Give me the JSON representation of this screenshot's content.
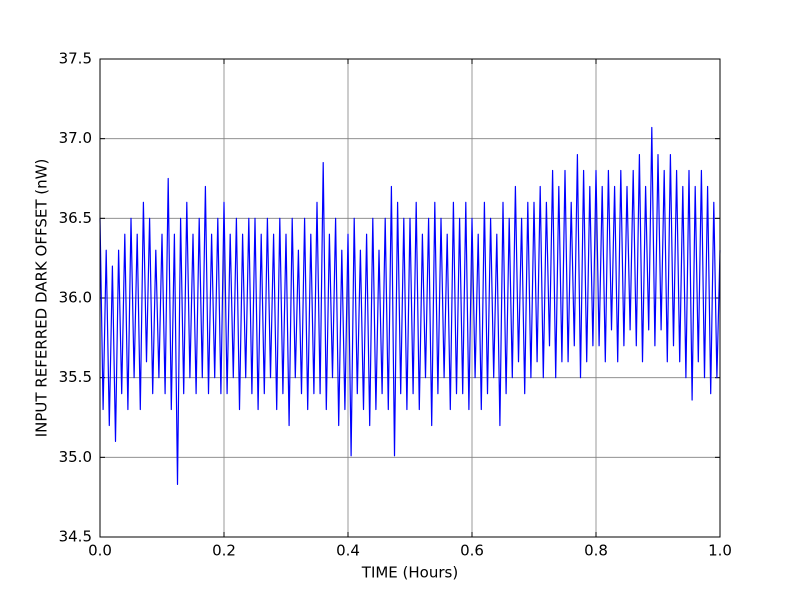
{
  "chart_data": {
    "type": "line",
    "xlabel": "TIME (Hours)",
    "ylabel": "INPUT REFERRED DARK OFFSET (nW)",
    "xlim": [
      0,
      1
    ],
    "ylim": [
      34.5,
      37.5
    ],
    "xticks": [
      {
        "value": 0,
        "label": "0.0"
      },
      0.2,
      0.4,
      0.6,
      0.8,
      {
        "value": 1,
        "label": "1.0"
      }
    ],
    "yticks": [
      34.5,
      {
        "value": 35,
        "label": "35.0"
      },
      35.5,
      {
        "value": 36,
        "label": "36.0"
      },
      36.5,
      {
        "value": 37,
        "label": "37.0"
      },
      37.5
    ],
    "grid": true,
    "series": [
      {
        "color": "#0000ff",
        "x": [
          0,
          0.005,
          0.01,
          0.015,
          0.02,
          0.025,
          0.03,
          0.035,
          0.04,
          0.045,
          0.05,
          0.055,
          0.06,
          0.065,
          0.07,
          0.075,
          0.08,
          0.085,
          0.09,
          0.095,
          0.1,
          0.105,
          0.11,
          0.115,
          0.12,
          0.125,
          0.13,
          0.135,
          0.14,
          0.145,
          0.15,
          0.155,
          0.16,
          0.165,
          0.17,
          0.175,
          0.18,
          0.185,
          0.19,
          0.195,
          0.2,
          0.205,
          0.21,
          0.215,
          0.22,
          0.225,
          0.23,
          0.235,
          0.24,
          0.245,
          0.25,
          0.255,
          0.26,
          0.265,
          0.27,
          0.275,
          0.28,
          0.285,
          0.29,
          0.295,
          0.3,
          0.305,
          0.31,
          0.315,
          0.32,
          0.325,
          0.33,
          0.335,
          0.34,
          0.345,
          0.35,
          0.355,
          0.36,
          0.365,
          0.37,
          0.375,
          0.38,
          0.385,
          0.39,
          0.395,
          0.4,
          0.405,
          0.41,
          0.415,
          0.42,
          0.425,
          0.43,
          0.435,
          0.44,
          0.445,
          0.45,
          0.455,
          0.46,
          0.465,
          0.47,
          0.475,
          0.48,
          0.485,
          0.49,
          0.495,
          0.5,
          0.505,
          0.51,
          0.515,
          0.52,
          0.525,
          0.53,
          0.535,
          0.54,
          0.545,
          0.55,
          0.555,
          0.56,
          0.565,
          0.57,
          0.575,
          0.58,
          0.585,
          0.59,
          0.595,
          0.6,
          0.605,
          0.61,
          0.615,
          0.62,
          0.625,
          0.63,
          0.635,
          0.64,
          0.645,
          0.65,
          0.655,
          0.66,
          0.665,
          0.67,
          0.675,
          0.68,
          0.685,
          0.69,
          0.695,
          0.7,
          0.705,
          0.71,
          0.715,
          0.72,
          0.725,
          0.73,
          0.735,
          0.74,
          0.745,
          0.75,
          0.755,
          0.76,
          0.765,
          0.77,
          0.775,
          0.78,
          0.785,
          0.79,
          0.795,
          0.8,
          0.805,
          0.81,
          0.815,
          0.82,
          0.825,
          0.83,
          0.835,
          0.84,
          0.845,
          0.85,
          0.855,
          0.86,
          0.865,
          0.87,
          0.875,
          0.88,
          0.885,
          0.89,
          0.895,
          0.9,
          0.905,
          0.91,
          0.915,
          0.92,
          0.925,
          0.93,
          0.935,
          0.94,
          0.945,
          0.95,
          0.955,
          0.96,
          0.965,
          0.97,
          0.975,
          0.98,
          0.985,
          0.99,
          0.995,
          1
        ],
        "values": [
          36.5,
          35.3,
          36.3,
          35.2,
          36.2,
          35.1,
          36.3,
          35.4,
          36.4,
          35.3,
          36.5,
          35.5,
          36.4,
          35.3,
          36.6,
          35.6,
          36.5,
          35.4,
          36.3,
          35.5,
          36.4,
          35.4,
          36.75,
          35.3,
          36.4,
          34.83,
          36.5,
          35.4,
          36.6,
          35.5,
          36.4,
          35.4,
          36.5,
          35.5,
          36.7,
          35.4,
          36.4,
          35.5,
          36.5,
          35.4,
          36.6,
          35.4,
          36.4,
          35.5,
          36.5,
          35.3,
          36.4,
          35.5,
          36.5,
          35.4,
          36.5,
          35.3,
          36.4,
          35.4,
          36.5,
          35.5,
          36.4,
          35.3,
          36.5,
          35.4,
          36.4,
          35.2,
          36.5,
          35.5,
          36.3,
          35.4,
          36.5,
          35.3,
          36.4,
          35.4,
          36.6,
          35.4,
          36.85,
          35.3,
          36.4,
          35.5,
          36.5,
          35.2,
          36.3,
          35.3,
          36.4,
          35.01,
          36.5,
          35.4,
          36.3,
          35.3,
          36.4,
          35.2,
          36.5,
          35.3,
          36.3,
          35.4,
          36.5,
          35.3,
          36.7,
          35.01,
          36.6,
          35.4,
          36.5,
          35.3,
          36.5,
          35.4,
          36.6,
          35.3,
          36.4,
          35.5,
          36.5,
          35.2,
          36.6,
          35.4,
          36.5,
          35.5,
          36.4,
          35.3,
          36.6,
          35.4,
          36.5,
          35.4,
          36.6,
          35.3,
          36.5,
          35.5,
          36.4,
          35.3,
          36.6,
          35.4,
          36.5,
          35.5,
          36.4,
          35.2,
          36.6,
          35.4,
          36.5,
          35.5,
          36.7,
          35.6,
          36.5,
          35.4,
          36.6,
          35.5,
          36.6,
          35.6,
          36.7,
          35.5,
          36.6,
          35.7,
          36.8,
          35.5,
          36.7,
          35.6,
          36.8,
          35.6,
          36.6,
          35.7,
          36.9,
          35.5,
          36.8,
          35.6,
          36.7,
          35.7,
          36.8,
          35.7,
          36.7,
          35.6,
          36.8,
          35.8,
          36.7,
          35.6,
          36.8,
          35.7,
          36.7,
          35.8,
          36.8,
          35.7,
          36.9,
          35.6,
          36.7,
          35.8,
          37.07,
          35.7,
          36.9,
          35.8,
          36.8,
          35.6,
          36.9,
          35.7,
          36.8,
          35.6,
          36.7,
          35.5,
          36.8,
          35.36,
          36.7,
          35.6,
          36.8,
          35.5,
          36.7,
          35.4,
          36.6,
          35.5,
          36.3
        ]
      }
    ]
  }
}
